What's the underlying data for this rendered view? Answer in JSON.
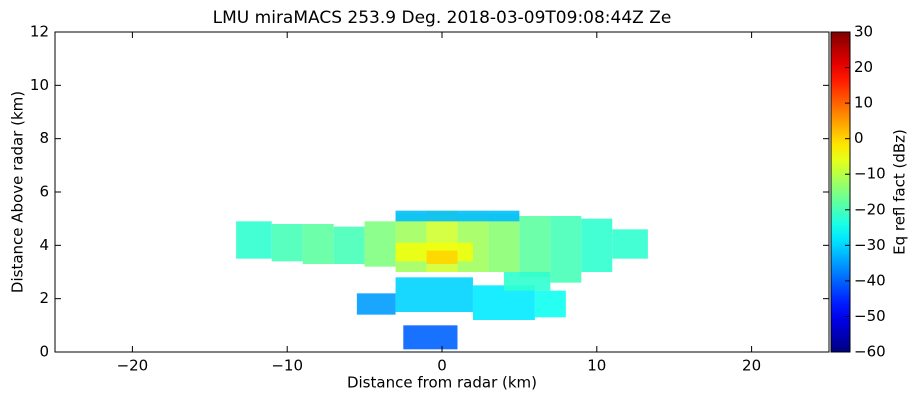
{
  "chart_data": {
    "type": "rhi",
    "title": "LMU miraMACS 253.9 Deg. 2018-03-09T09:08:44Z  Ze",
    "xlabel": "Distance from radar (km)",
    "ylabel": "Distance Above radar  (km)",
    "colorbar_label": "Eq refl fact (dBz)",
    "xlim": [
      -25,
      25
    ],
    "ylim": [
      0,
      12
    ],
    "xticks": [
      {
        "value": -20,
        "label": "−20"
      },
      {
        "value": -10,
        "label": "−10"
      },
      0,
      10,
      20
    ],
    "yticks": [
      0,
      2,
      4,
      6,
      8,
      10,
      12
    ],
    "clim": [
      -60,
      30
    ],
    "cticks": [
      {
        "value": -60,
        "label": "−60"
      },
      {
        "value": -50,
        "label": "−50"
      },
      {
        "value": -40,
        "label": "−40"
      },
      {
        "value": -30,
        "label": "−30"
      },
      {
        "value": -20,
        "label": "−20"
      },
      {
        "value": -10,
        "label": "−10"
      },
      0,
      10,
      20,
      30
    ],
    "colormap": "jet",
    "cells": [
      [
        -13.3,
        -11,
        3.5,
        4.9,
        -22
      ],
      [
        -11,
        -9,
        3.4,
        4.8,
        -20
      ],
      [
        -9,
        -7,
        3.3,
        4.8,
        -18
      ],
      [
        -7,
        -5,
        3.3,
        4.7,
        -20
      ],
      [
        -5,
        -3,
        3.2,
        4.9,
        -15
      ],
      [
        -3,
        -1,
        3.0,
        5.2,
        -12
      ],
      [
        -1,
        1,
        3.0,
        5.3,
        -8
      ],
      [
        1,
        3,
        3.0,
        5.2,
        -12
      ],
      [
        3,
        5,
        3.0,
        5.2,
        -14
      ],
      [
        5,
        7,
        2.8,
        5.1,
        -18
      ],
      [
        7,
        9,
        2.6,
        5.1,
        -20
      ],
      [
        9,
        11,
        3.0,
        5.0,
        -22
      ],
      [
        11,
        13.3,
        3.5,
        4.6,
        -22
      ],
      [
        -3,
        2,
        3.4,
        4.1,
        -5
      ],
      [
        -1,
        1,
        3.3,
        3.8,
        0
      ],
      [
        -3,
        5,
        4.9,
        5.3,
        -32
      ],
      [
        -5.5,
        -3,
        1.4,
        2.2,
        -35
      ],
      [
        -3,
        2,
        1.5,
        2.8,
        -30
      ],
      [
        2,
        6,
        1.2,
        2.5,
        -28
      ],
      [
        6,
        8,
        1.3,
        2.3,
        -25
      ],
      [
        4,
        7,
        2.3,
        3.0,
        -22
      ],
      [
        -2.5,
        1,
        0.1,
        1.0,
        -40
      ]
    ]
  }
}
